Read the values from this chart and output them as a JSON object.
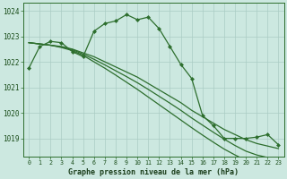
{
  "title": "Graphe pression niveau de la mer (hPa)",
  "background_color": "#cce8e0",
  "grid_color": "#aaccc4",
  "line_color": "#2d6e2d",
  "ylim": [
    1018.3,
    1024.3
  ],
  "yticks": [
    1019,
    1020,
    1021,
    1022,
    1023,
    1024
  ],
  "xlim": [
    -0.5,
    23.5
  ],
  "xticks": [
    0,
    1,
    2,
    3,
    4,
    5,
    6,
    7,
    8,
    9,
    10,
    11,
    12,
    13,
    14,
    15,
    16,
    17,
    18,
    19,
    20,
    21,
    22,
    23
  ],
  "series": {
    "line1": [
      1021.75,
      1022.6,
      1022.8,
      1022.75,
      1022.4,
      1022.2,
      1023.2,
      1023.5,
      1023.6,
      1023.85,
      1023.65,
      1023.75,
      1023.3,
      1022.6,
      1021.9,
      1021.35,
      1019.9,
      1019.5,
      1019.0,
      1019.0,
      1019.0,
      1019.05,
      1019.15,
      1018.75
    ],
    "line2_smooth": [
      1022.75,
      1022.7,
      1022.65,
      1022.6,
      1022.5,
      1022.35,
      1022.2,
      1022.0,
      1021.8,
      1021.6,
      1021.4,
      1021.15,
      1020.9,
      1020.65,
      1020.4,
      1020.1,
      1019.85,
      1019.6,
      1019.35,
      1019.15,
      1018.95,
      1018.8,
      1018.7,
      1018.6
    ],
    "line3_smooth": [
      1022.75,
      1022.7,
      1022.65,
      1022.58,
      1022.48,
      1022.3,
      1022.1,
      1021.88,
      1021.65,
      1021.42,
      1021.18,
      1020.92,
      1020.65,
      1020.38,
      1020.1,
      1019.8,
      1019.52,
      1019.24,
      1018.97,
      1018.72,
      1018.5,
      1018.35,
      1018.25,
      1018.18
    ],
    "line4_smooth": [
      1022.75,
      1022.7,
      1022.65,
      1022.56,
      1022.44,
      1022.25,
      1022.0,
      1021.75,
      1021.48,
      1021.2,
      1020.92,
      1020.62,
      1020.32,
      1020.02,
      1019.72,
      1019.42,
      1019.13,
      1018.85,
      1018.58,
      1018.35,
      1018.14,
      1017.98,
      1017.87,
      1017.8
    ]
  }
}
